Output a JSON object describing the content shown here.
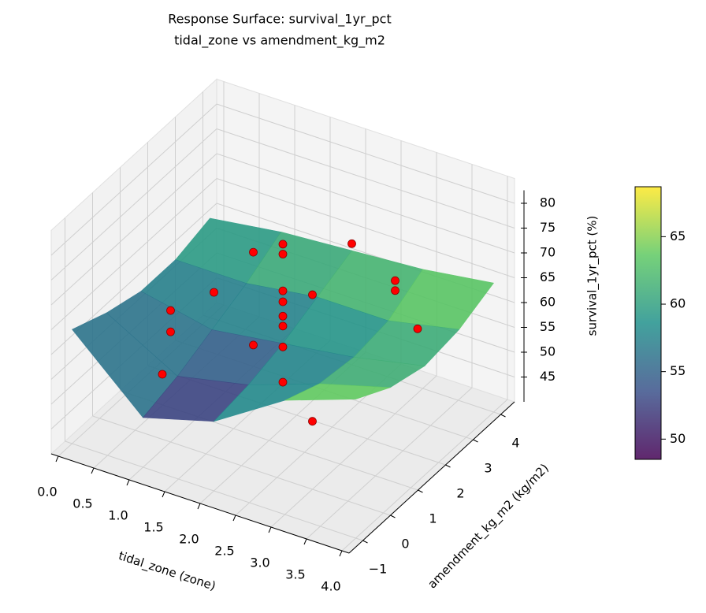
{
  "chart_data": {
    "type": "surface3d",
    "title": "Response Surface: survival_1yr_pct",
    "subtitle": "tidal_zone vs amendment_kg_m2",
    "x_label": "tidal_zone (zone)",
    "y_label": "amendment_kg_m2 (kg/m2)",
    "z_label": "survival_1yr_pct (%)",
    "xlim": [
      -0.1,
      4.1
    ],
    "ylim": [
      -1.5,
      4.5
    ],
    "zlim": [
      40,
      85
    ],
    "xticks": [
      {
        "value": 0,
        "label": "0.0"
      },
      {
        "value": 0.5,
        "label": "0.5"
      },
      {
        "value": 1,
        "label": "1.0"
      },
      {
        "value": 1.5,
        "label": "1.5"
      },
      {
        "value": 2,
        "label": "2.0"
      },
      {
        "value": 2.5,
        "label": "2.5"
      },
      {
        "value": 3,
        "label": "3.0"
      },
      {
        "value": 3.5,
        "label": "3.5"
      },
      {
        "value": 4,
        "label": "4.0"
      }
    ],
    "yticks": [
      {
        "value": -1,
        "label": "−1"
      },
      0,
      1,
      2,
      3,
      4
    ],
    "zticks": [
      45,
      50,
      55,
      60,
      65,
      70,
      75,
      80
    ],
    "surface": {
      "x": [
        0,
        1,
        2,
        3,
        4
      ],
      "y": [
        -1,
        0.25,
        1.5,
        2.75,
        4
      ],
      "z": [
        [
          63,
          60,
          58,
          58,
          60
        ],
        [
          50,
          52,
          55,
          58,
          62
        ],
        [
          54,
          55,
          57,
          60,
          63
        ],
        [
          63,
          60,
          59,
          60,
          64
        ],
        [
          68,
          64,
          62,
          63,
          66
        ]
      ]
    },
    "clim": [
      48.5,
      68.7
    ],
    "cticks": [
      50,
      55,
      60,
      65
    ],
    "scatter": {
      "color": "#ff0000",
      "x": [
        2,
        2,
        2,
        2,
        2,
        2,
        2,
        2,
        0.3,
        1,
        1,
        2,
        1,
        1,
        3,
        3,
        2,
        3,
        3,
        3.9
      ],
      "y": [
        1.5,
        1.5,
        1.5,
        1.5,
        1.5,
        1.5,
        1.5,
        1.5,
        1.5,
        0,
        0,
        -1,
        3,
        3,
        0,
        0,
        4,
        3,
        3,
        1.5
      ],
      "z": [
        77,
        75,
        67.6,
        65.4,
        62.5,
        60.5,
        56.3,
        49.2,
        42.7,
        66.5,
        62.2,
        80,
        63,
        44.3,
        79.2,
        53.7,
        64.4,
        66.8,
        64.8,
        69
      ]
    }
  }
}
